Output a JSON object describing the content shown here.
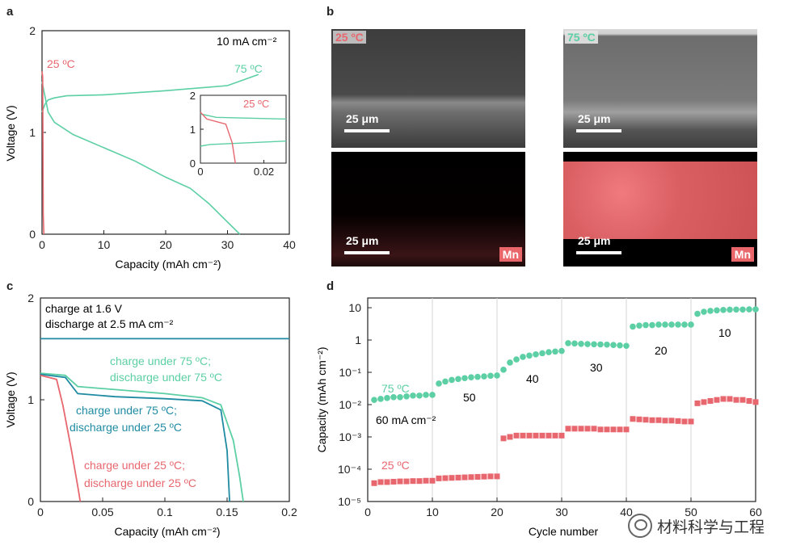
{
  "panels": {
    "a": {
      "letter": "a",
      "ylabel": "Voltage (V)",
      "xlabel": "Capacity (mAh cm⁻²)",
      "current": "10 mA cm⁻²",
      "label_25": "25 ºC",
      "label_75": "75 ºC",
      "inset_label_25": "25 ºC",
      "xticks": [
        "0",
        "10",
        "20",
        "30",
        "40"
      ],
      "yticks": [
        "0",
        "1",
        "2"
      ],
      "inset_xticks": [
        "0",
        "0.02"
      ],
      "inset_yticks": [
        "0",
        "1",
        "2"
      ]
    },
    "b": {
      "letter": "b",
      "tag_25": "25 ºC",
      "tag_75": "75 ºC",
      "scale": "25 μm",
      "mn": "Mn"
    },
    "c": {
      "letter": "c",
      "ylabel": "Voltage (V)",
      "xlabel": "Capacity (mAh cm⁻²)",
      "legend_line1": "charge at 1.6 V",
      "legend_line2": "discharge at 2.5 mA cm⁻²",
      "label_75_75_a": "charge under 75 ºC;",
      "label_75_75_b": "discharge under 75 ºC",
      "label_75_25_a": "charge under 75 ºC;",
      "label_75_25_b": "discharge under 25 ºC",
      "label_25_25_a": "charge under 25 ºC;",
      "label_25_25_b": "discharge under 25 ºC",
      "xticks": [
        "0",
        "0.05",
        "0.1",
        "0.15",
        "0.2"
      ],
      "yticks": [
        "0",
        "1",
        "2"
      ]
    },
    "d": {
      "letter": "d",
      "ylabel": "Capacity (mAh cm⁻²)",
      "xlabel": "Cycle number",
      "label_75": "75 ºC",
      "label_25": "25 ºC",
      "rate_labels": [
        "60 mA cm⁻²",
        "50",
        "40",
        "30",
        "20",
        "10"
      ],
      "xticks": [
        "0",
        "10",
        "20",
        "30",
        "40",
        "50",
        "60"
      ],
      "yticks": [
        "10⁻⁵",
        "10⁻⁴",
        "10⁻³",
        "10⁻²",
        "10⁻¹",
        "1",
        "10"
      ]
    }
  },
  "colors": {
    "green": "#5ccfa4",
    "red": "#e8676f",
    "teal": "#1f8ba3",
    "axis": "#222222"
  },
  "watermark": "材料科学与工程",
  "chart_data": [
    {
      "type": "line",
      "panel": "a",
      "xlabel": "Capacity (mAh cm⁻²)",
      "ylabel": "Voltage (V)",
      "xlim": [
        0,
        40
      ],
      "ylim": [
        0,
        2
      ],
      "series": [
        {
          "name": "75 ºC charge",
          "x": [
            0,
            0.5,
            1,
            2,
            4,
            10,
            20,
            30,
            35
          ],
          "y": [
            1.2,
            1.28,
            1.32,
            1.34,
            1.36,
            1.37,
            1.41,
            1.46,
            1.57
          ]
        },
        {
          "name": "75 ºC discharge",
          "x": [
            0,
            1,
            2,
            5,
            10,
            15,
            20,
            24,
            27,
            30,
            32
          ],
          "y": [
            1.5,
            1.2,
            1.1,
            0.98,
            0.85,
            0.72,
            0.56,
            0.45,
            0.3,
            0.12,
            0.0
          ]
        },
        {
          "name": "25 ºC",
          "x": [
            0,
            0.1,
            0.2,
            0.3
          ],
          "y": [
            1.6,
            1.55,
            0.2,
            0.0
          ]
        }
      ],
      "inset": {
        "xlim": [
          0,
          0.027
        ],
        "ylim": [
          0,
          2
        ],
        "series": [
          {
            "name": "75 ºC charge",
            "x": [
              0,
              0.003,
              0.027
            ],
            "y": [
              0.5,
              0.55,
              0.65
            ]
          },
          {
            "name": "75 ºC discharge",
            "x": [
              0,
              0.005,
              0.027
            ],
            "y": [
              1.45,
              1.35,
              1.3
            ]
          },
          {
            "name": "25 ºC",
            "x": [
              0,
              0.002,
              0.008,
              0.01,
              0.011
            ],
            "y": [
              1.5,
              1.3,
              1.15,
              0.6,
              0.0
            ]
          }
        ]
      }
    },
    {
      "type": "line",
      "panel": "c",
      "xlabel": "Capacity (mAh cm⁻²)",
      "ylabel": "Voltage (V)",
      "xlim": [
        0,
        0.2
      ],
      "ylim": [
        0,
        2
      ],
      "series": [
        {
          "name": "charge at 1.6 V",
          "x": [
            0,
            0.2
          ],
          "y": [
            1.6,
            1.6
          ]
        },
        {
          "name": "charge under 75 ºC; discharge under 75 ºC",
          "x": [
            0,
            0.02,
            0.03,
            0.06,
            0.1,
            0.13,
            0.145,
            0.155,
            0.16,
            0.163
          ],
          "y": [
            1.26,
            1.24,
            1.13,
            1.1,
            1.06,
            1.02,
            0.95,
            0.6,
            0.25,
            0.0
          ]
        },
        {
          "name": "charge under 75 ºC; discharge under 25 ºC",
          "x": [
            0,
            0.02,
            0.03,
            0.06,
            0.1,
            0.13,
            0.145,
            0.15,
            0.152
          ],
          "y": [
            1.25,
            1.22,
            1.06,
            1.03,
            1.01,
            0.99,
            0.9,
            0.5,
            0.0
          ]
        },
        {
          "name": "charge under 25 ºC; discharge under 25 ºC",
          "x": [
            0,
            0.013,
            0.018,
            0.025,
            0.03,
            0.032
          ],
          "y": [
            1.24,
            1.2,
            0.95,
            0.5,
            0.15,
            0.0
          ]
        }
      ]
    },
    {
      "type": "scatter",
      "panel": "d",
      "xlabel": "Cycle number",
      "ylabel": "Capacity (mAh cm⁻²)",
      "yscale": "log",
      "xlim": [
        0,
        60
      ],
      "ylim": [
        1e-05,
        20
      ],
      "series": [
        {
          "name": "75 ºC",
          "x": [
            1,
            2,
            3,
            4,
            5,
            6,
            7,
            8,
            9,
            10,
            11,
            12,
            13,
            14,
            15,
            16,
            17,
            18,
            19,
            20,
            21,
            22,
            23,
            24,
            25,
            26,
            27,
            28,
            29,
            30,
            31,
            32,
            33,
            34,
            35,
            36,
            37,
            38,
            39,
            40,
            41,
            42,
            43,
            44,
            45,
            46,
            47,
            48,
            49,
            50,
            51,
            52,
            53,
            54,
            55,
            56,
            57,
            58,
            59,
            60
          ],
          "y": [
            0.014,
            0.015,
            0.016,
            0.017,
            0.017,
            0.018,
            0.019,
            0.019,
            0.02,
            0.02,
            0.045,
            0.052,
            0.058,
            0.062,
            0.066,
            0.07,
            0.072,
            0.075,
            0.078,
            0.08,
            0.12,
            0.2,
            0.25,
            0.3,
            0.33,
            0.36,
            0.39,
            0.42,
            0.44,
            0.46,
            0.8,
            0.78,
            0.76,
            0.75,
            0.74,
            0.73,
            0.72,
            0.7,
            0.68,
            0.66,
            2.6,
            2.8,
            2.9,
            2.9,
            3.0,
            3.0,
            3.0,
            3.0,
            3.0,
            3.0,
            6.5,
            7.5,
            8.0,
            8.3,
            8.5,
            8.7,
            8.8,
            8.8,
            8.9,
            8.9
          ]
        },
        {
          "name": "25 ºC",
          "x": [
            1,
            2,
            3,
            4,
            5,
            6,
            7,
            8,
            9,
            10,
            11,
            12,
            13,
            14,
            15,
            16,
            17,
            18,
            19,
            20,
            21,
            22,
            23,
            24,
            25,
            26,
            27,
            28,
            29,
            30,
            31,
            32,
            33,
            34,
            35,
            36,
            37,
            38,
            39,
            40,
            41,
            42,
            43,
            44,
            45,
            46,
            47,
            48,
            49,
            50,
            51,
            52,
            53,
            54,
            55,
            56,
            57,
            58,
            59,
            60
          ],
          "y": [
            3.7e-05,
            4e-05,
            4e-05,
            4.1e-05,
            4.2e-05,
            4.2e-05,
            4.3e-05,
            4.3e-05,
            4.4e-05,
            4.4e-05,
            5.2e-05,
            5.3e-05,
            5.4e-05,
            5.5e-05,
            5.6e-05,
            5.7e-05,
            5.8e-05,
            5.9e-05,
            6e-05,
            6e-05,
            0.0009,
            0.001,
            0.0011,
            0.0011,
            0.0011,
            0.0011,
            0.0011,
            0.0011,
            0.0011,
            0.0011,
            0.0018,
            0.0018,
            0.0018,
            0.0018,
            0.0018,
            0.0017,
            0.0017,
            0.0017,
            0.0017,
            0.0017,
            0.0036,
            0.0035,
            0.0034,
            0.0033,
            0.0033,
            0.0032,
            0.0032,
            0.0031,
            0.003,
            0.003,
            0.011,
            0.012,
            0.013,
            0.014,
            0.015,
            0.015,
            0.014,
            0.014,
            0.013,
            0.012
          ]
        }
      ]
    }
  ]
}
